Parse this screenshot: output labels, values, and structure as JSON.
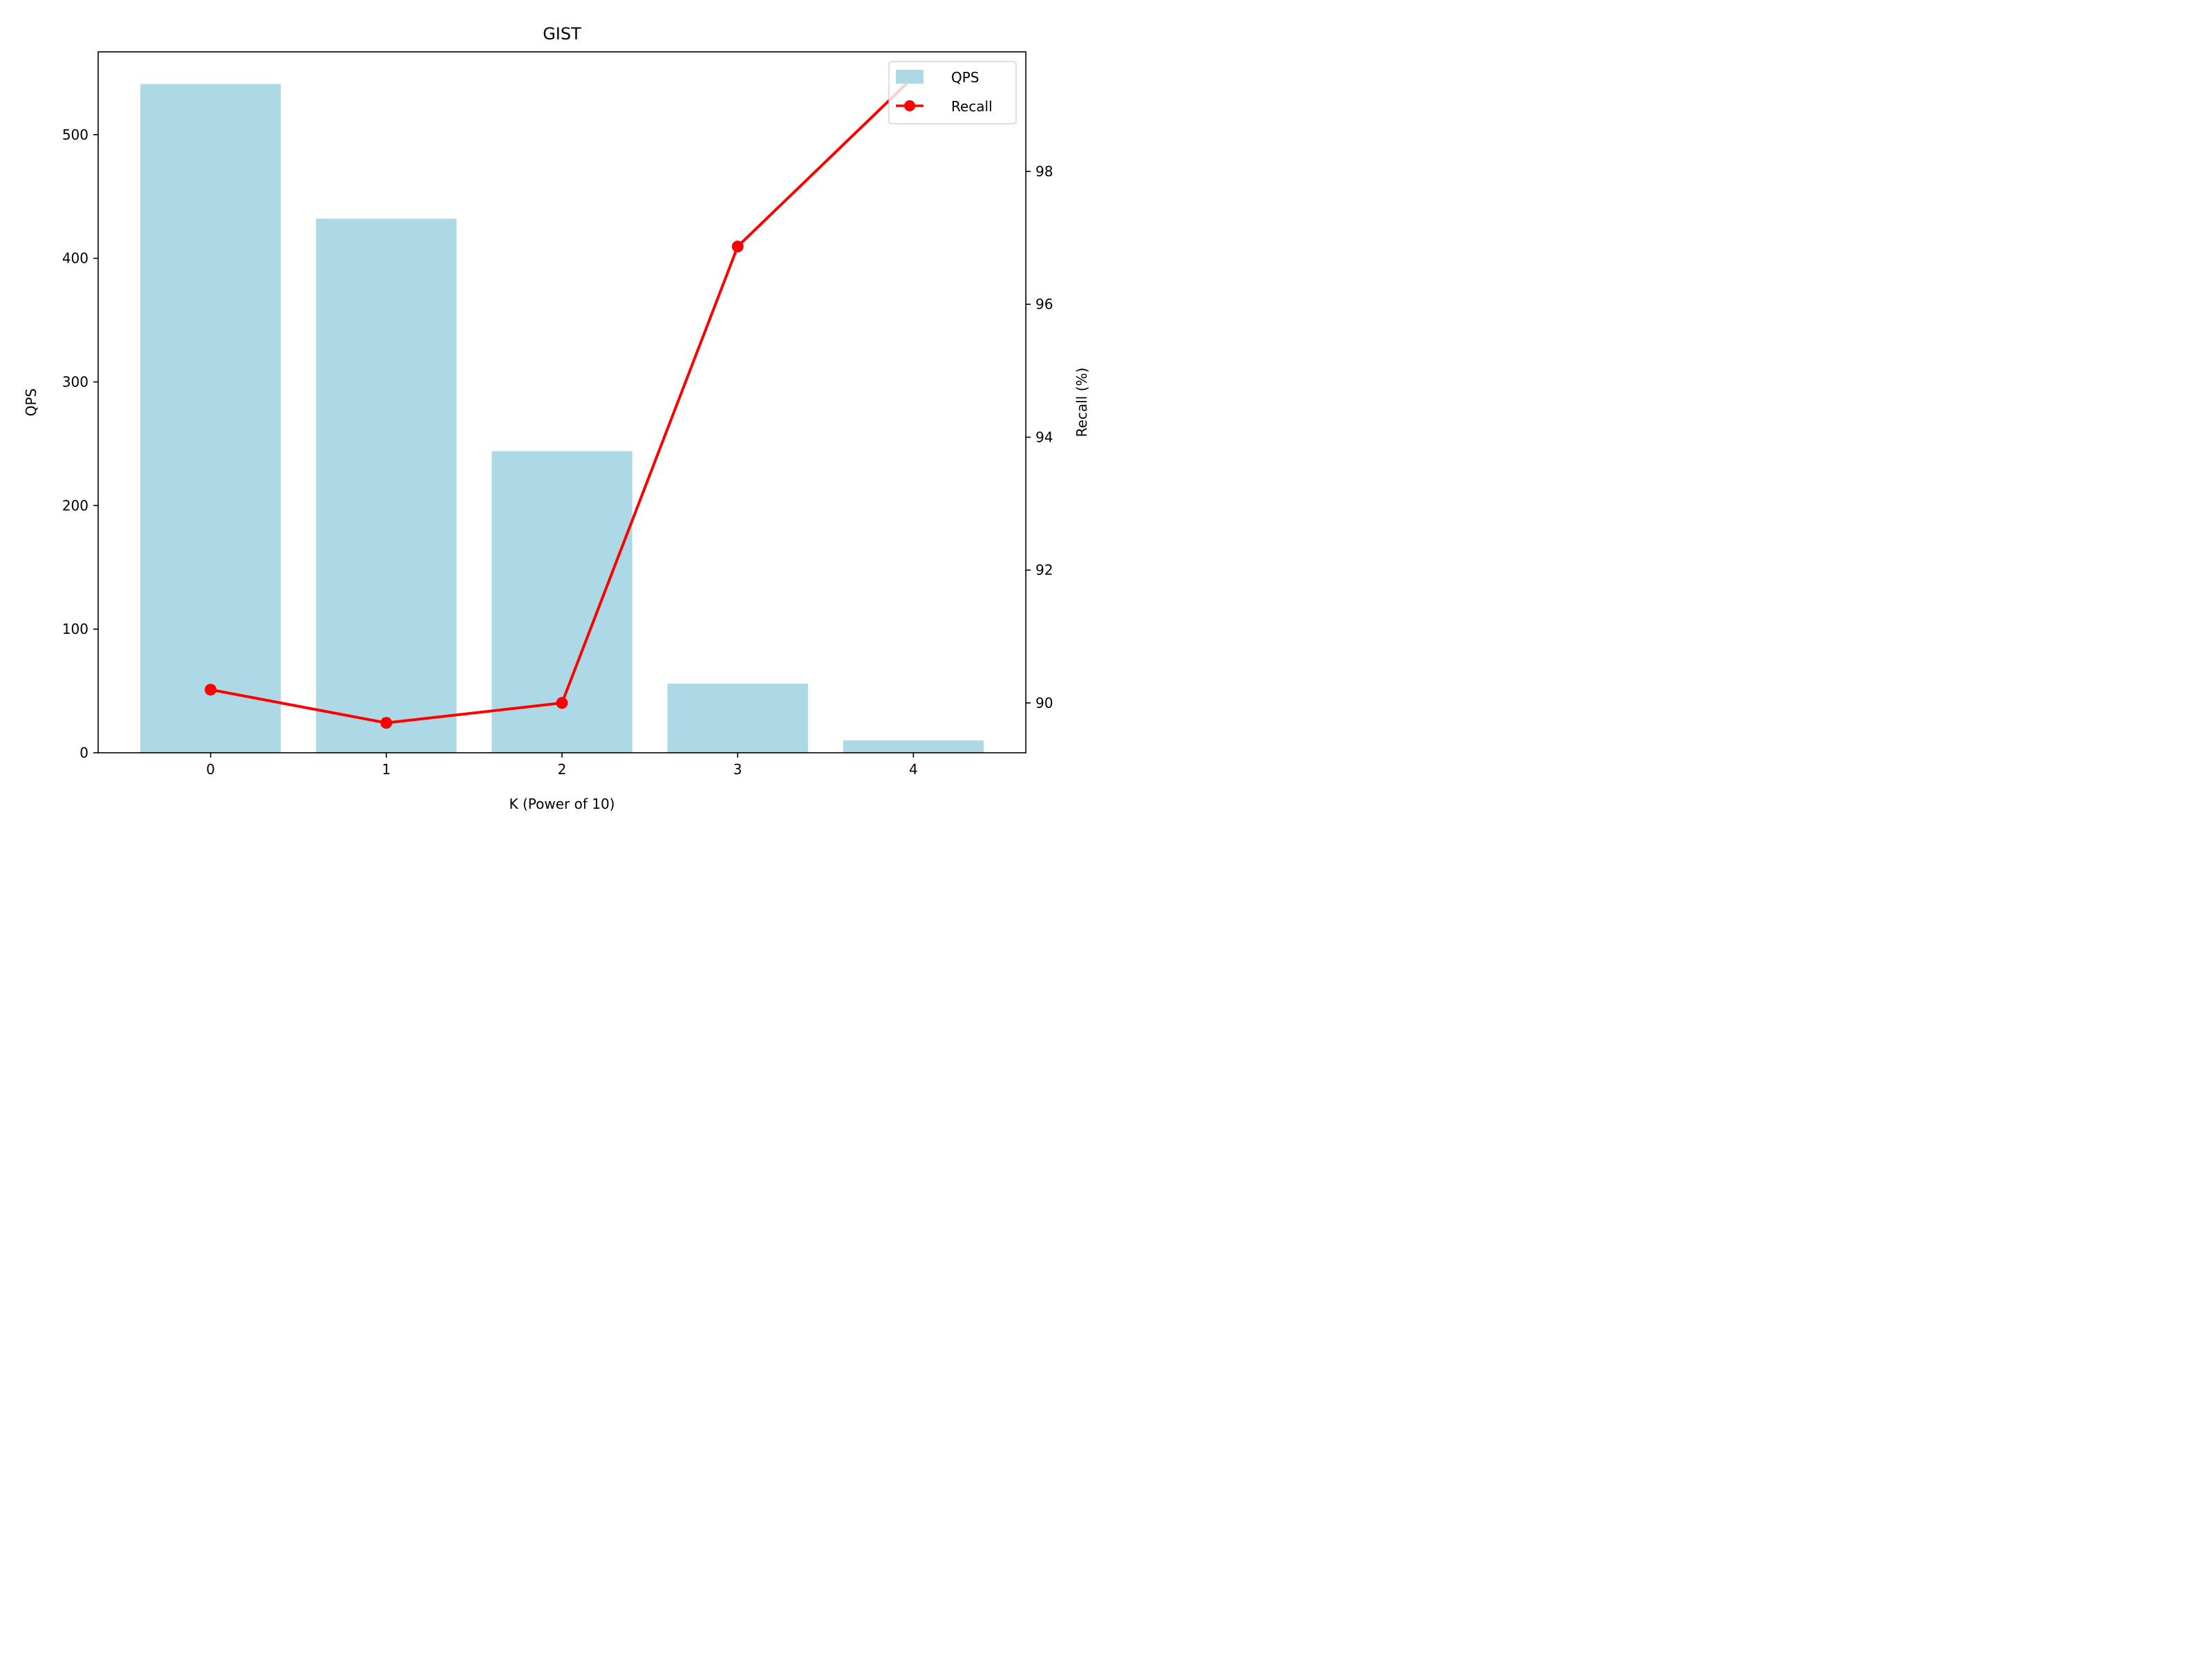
{
  "chart_data": {
    "type": "bar",
    "title": "GIST",
    "xlabel": "K (Power of 10)",
    "ylabel": "QPS",
    "y2label": "Recall (%)",
    "categories": [
      "0",
      "1",
      "2",
      "3",
      "4"
    ],
    "x": [
      0,
      1,
      2,
      3,
      4
    ],
    "series": [
      {
        "name": "QPS",
        "type": "bar",
        "axis": "left",
        "values": [
          541,
          432,
          244,
          56,
          10
        ]
      },
      {
        "name": "Recall",
        "type": "line",
        "axis": "right",
        "values": [
          90.2,
          89.7,
          90.0,
          96.87,
          99.42
        ]
      }
    ],
    "ylim": [
      0,
      567
    ],
    "y2lim": [
      89.25,
      99.8
    ],
    "xlim": [
      -0.64,
      4.64
    ],
    "yticks": [
      0,
      100,
      200,
      300,
      400,
      500
    ],
    "y2ticks": [
      90,
      92,
      94,
      96,
      98
    ],
    "legend": "top-right",
    "grid": false,
    "colors": {
      "bars": "#ADD8E6",
      "line": "#FF0000"
    }
  }
}
